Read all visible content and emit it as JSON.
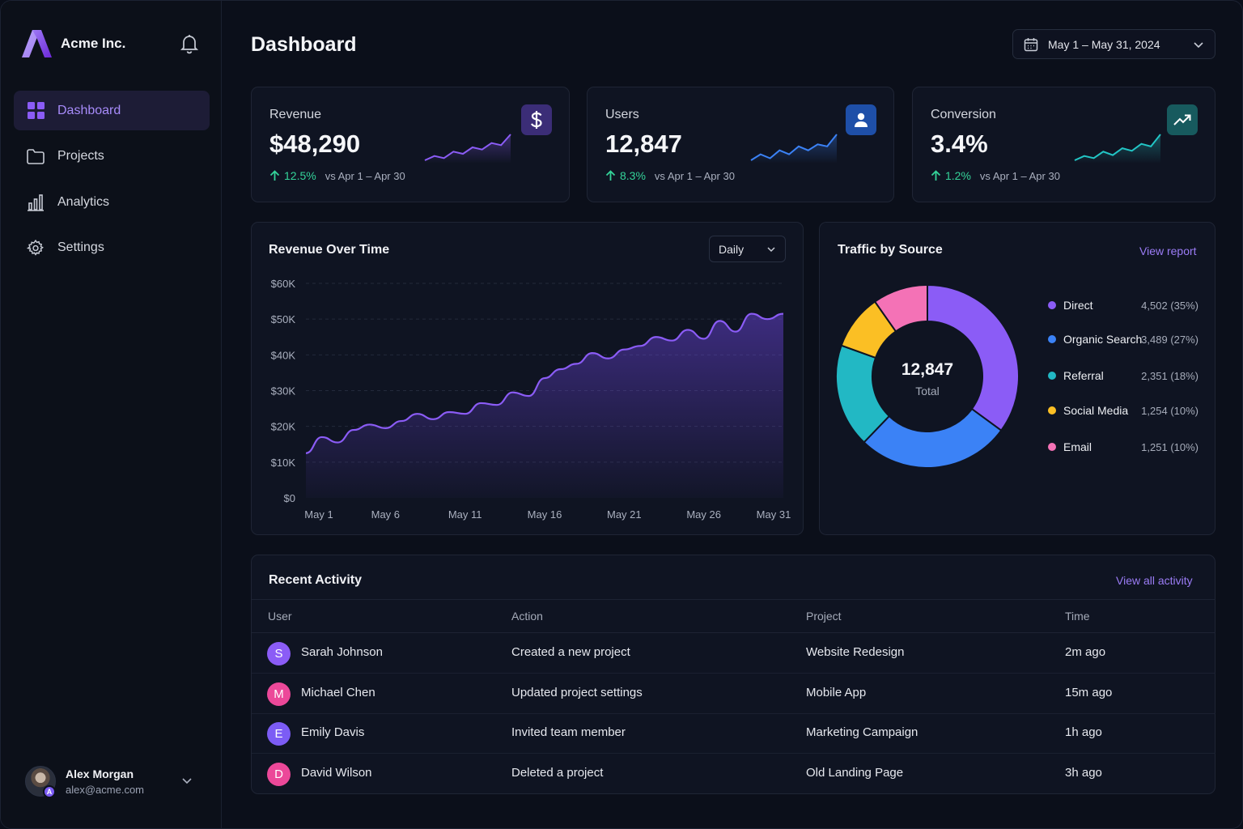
{
  "brand": {
    "name": "Acme Inc."
  },
  "sidebar": {
    "items": [
      {
        "label": "Dashboard",
        "icon": "grid-icon",
        "active": true
      },
      {
        "label": "Projects",
        "icon": "folder-icon",
        "active": false
      },
      {
        "label": "Analytics",
        "icon": "bar-chart-icon",
        "active": false
      },
      {
        "label": "Settings",
        "icon": "gear-icon",
        "active": false
      }
    ],
    "user": {
      "name": "Alex Morgan",
      "email": "alex@acme.com",
      "badge": "A"
    }
  },
  "header": {
    "title": "Dashboard",
    "date_range": "May 1 – May 31, 2024"
  },
  "kpis": [
    {
      "label": "Revenue",
      "value": "$48,290",
      "delta": "12.5%",
      "compare": "vs Apr 1 – Apr 30",
      "icon": "dollar-icon",
      "color": "#8b5cf6"
    },
    {
      "label": "Users",
      "value": "12,847",
      "delta": "8.3%",
      "compare": "vs Apr 1 – Apr 30",
      "icon": "user-icon",
      "color": "#3b82f6"
    },
    {
      "label": "Conversion",
      "value": "3.4%",
      "delta": "1.2%",
      "compare": "vs Apr 1 – Apr 30",
      "icon": "trend-up-icon",
      "color": "#22c5c5"
    }
  ],
  "revenue_chart": {
    "title": "Revenue Over Time",
    "granularity": "Daily"
  },
  "traffic": {
    "title": "Traffic by Source",
    "link": "View report",
    "total": "12,847",
    "total_label": "Total"
  },
  "activity": {
    "title": "Recent Activity",
    "link": "View all activity",
    "columns": [
      "User",
      "Action",
      "Project",
      "Time"
    ],
    "rows": [
      {
        "initial": "S",
        "user": "Sarah Johnson",
        "action": "Created a new project",
        "project": "Website Redesign",
        "time": "2m ago",
        "color": "#8b5cf6"
      },
      {
        "initial": "M",
        "user": "Michael Chen",
        "action": "Updated project settings",
        "project": "Mobile App",
        "time": "15m ago",
        "color": "#ec4899"
      },
      {
        "initial": "E",
        "user": "Emily Davis",
        "action": "Invited team member",
        "project": "Marketing Campaign",
        "time": "1h ago",
        "color": "#7c5cf5"
      },
      {
        "initial": "D",
        "user": "David Wilson",
        "action": "Deleted a project",
        "project": "Old Landing Page",
        "time": "3h ago",
        "color": "#ec4899"
      }
    ]
  },
  "chart_data": [
    {
      "type": "area",
      "title": "Revenue Over Time",
      "xlabel": "",
      "ylabel": "",
      "x_ticks": [
        "May 1",
        "May 6",
        "May 11",
        "May 16",
        "May 21",
        "May 26",
        "May 31"
      ],
      "y_ticks": [
        "$0",
        "$10K",
        "$20K",
        "$30K",
        "$40K",
        "$50K",
        "$60K"
      ],
      "ylim": [
        0,
        60000
      ],
      "grid": true,
      "x": [
        1,
        2,
        3,
        4,
        5,
        6,
        7,
        8,
        9,
        10,
        11,
        12,
        13,
        14,
        15,
        16,
        17,
        18,
        19,
        20,
        21,
        22,
        23,
        24,
        25,
        26,
        27,
        28,
        29,
        30,
        31
      ],
      "series": [
        {
          "color": "#8b5cf6",
          "values": [
            12500,
            17000,
            15500,
            19000,
            20500,
            19500,
            21500,
            23500,
            22000,
            24000,
            23500,
            26500,
            26000,
            29500,
            28500,
            33500,
            36000,
            37500,
            40500,
            39000,
            41500,
            42500,
            45000,
            44000,
            47000,
            44500,
            49500,
            46500,
            51500,
            50000,
            51500
          ]
        }
      ]
    },
    {
      "type": "pie",
      "title": "Traffic by Source",
      "legend": "right",
      "categories": [
        "Direct",
        "Organic Search",
        "Referral",
        "Social Media",
        "Email"
      ],
      "values": [
        4502,
        3489,
        2351,
        1254,
        1251
      ],
      "labels": [
        "4,502 (35%)",
        "3,489 (27%)",
        "2,351 (18%)",
        "1,254 (10%)",
        "1,251 (10%)"
      ],
      "colors": [
        "#8b5cf6",
        "#3b82f6",
        "#22b8c4",
        "#fbbf24",
        "#f472b6"
      ]
    }
  ],
  "sparklines": [
    [
      3,
      4,
      3.5,
      5,
      4.5,
      6,
      5.5,
      7,
      6.5,
      9
    ],
    [
      3,
      4.5,
      3.5,
      5.5,
      4.5,
      6.5,
      5.5,
      7,
      6.5,
      9.5
    ],
    [
      3,
      4,
      3.5,
      5,
      4.2,
      5.8,
      5.2,
      6.8,
      6.2,
      9
    ]
  ]
}
